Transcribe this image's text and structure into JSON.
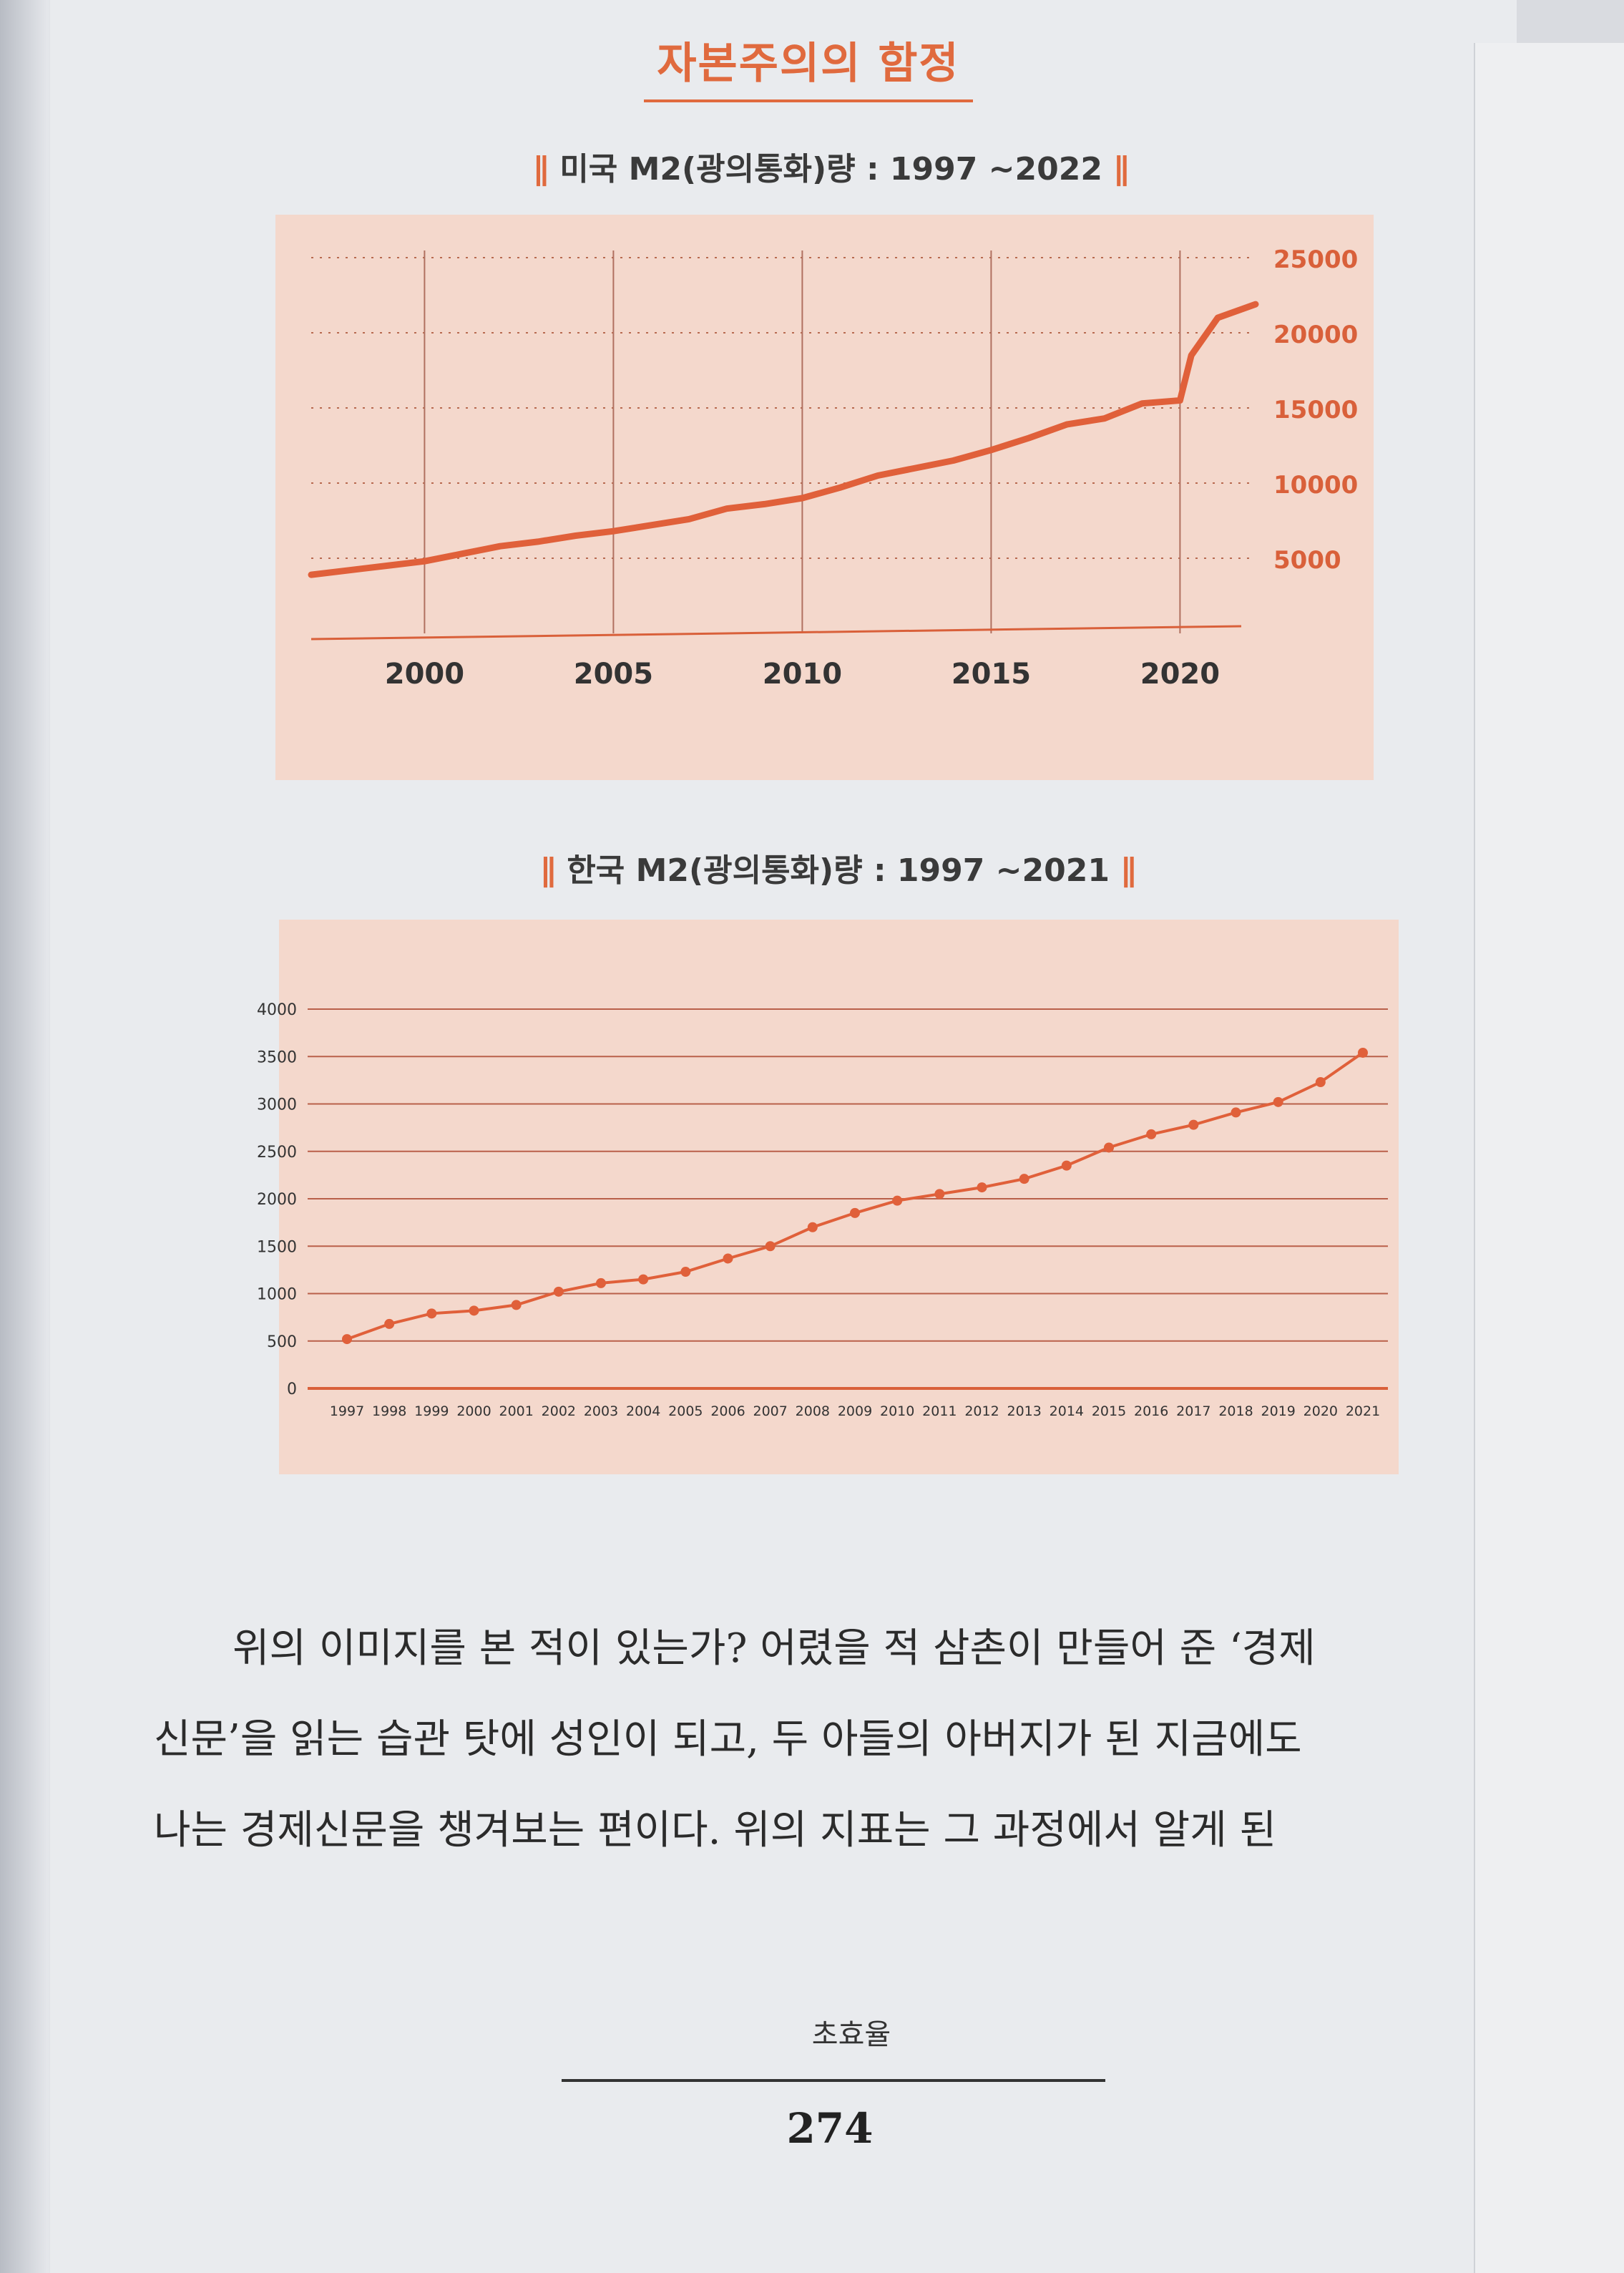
{
  "running_title": "자본주의의 함정",
  "charts": [
    {
      "title_bars_left": "∥",
      "title_text": "미국 M2(광의통화)량 : 1997 ~2022",
      "title_bars_right": "∥"
    },
    {
      "title_bars_left": "∥",
      "title_text": "한국 M2(광의통화)량 : 1997 ~2021",
      "title_bars_right": "∥"
    }
  ],
  "chart_data": [
    {
      "type": "line",
      "title": "미국 M2(광의통화)량 : 1997 ~2022",
      "xlabel": "",
      "ylabel": "",
      "x_ticks": [
        "2000",
        "2005",
        "2010",
        "2015",
        "2020"
      ],
      "y_ticks": [
        "5000",
        "10000",
        "15000",
        "20000",
        "25000"
      ],
      "xlim": [
        1997,
        2022
      ],
      "ylim": [
        0,
        25000
      ],
      "grid": true,
      "y_axis_side": "right",
      "line_color": "#e0603a",
      "x": [
        1997,
        1998,
        1999,
        2000,
        2001,
        2002,
        2003,
        2004,
        2005,
        2006,
        2007,
        2008,
        2009,
        2010,
        2011,
        2012,
        2013,
        2014,
        2015,
        2016,
        2017,
        2018,
        2019,
        2020,
        2020.3,
        2021,
        2022
      ],
      "values": [
        3900,
        4200,
        4500,
        4800,
        5300,
        5800,
        6100,
        6500,
        6800,
        7200,
        7600,
        8300,
        8600,
        9000,
        9700,
        10500,
        11000,
        11500,
        12200,
        13000,
        13900,
        14300,
        15300,
        15500,
        18500,
        21000,
        21900
      ]
    },
    {
      "type": "line",
      "title": "한국 M2(광의통화)량 : 1997 ~2021",
      "xlabel": "",
      "ylabel": "",
      "categories": [
        "1997",
        "1998",
        "1999",
        "2000",
        "2001",
        "2002",
        "2003",
        "2004",
        "2005",
        "2006",
        "2007",
        "2008",
        "2009",
        "2010",
        "2011",
        "2012",
        "2013",
        "2014",
        "2015",
        "2016",
        "2017",
        "2018",
        "2019",
        "2020",
        "2021"
      ],
      "y_ticks": [
        "0",
        "500",
        "1000",
        "1500",
        "2000",
        "2500",
        "3000",
        "3500",
        "4000"
      ],
      "ylim": [
        0,
        4000
      ],
      "grid": true,
      "markers": true,
      "line_color": "#e0603a",
      "values": [
        520,
        680,
        790,
        820,
        880,
        1020,
        1110,
        1150,
        1230,
        1370,
        1500,
        1700,
        1850,
        1980,
        2050,
        2120,
        2210,
        2350,
        2540,
        2680,
        2780,
        2910,
        3020,
        3230,
        3540
      ]
    }
  ],
  "body_paragraph": [
    "위의 이미지를 본 적이 있는가? 어렸을 적 삼촌이 만들어 준 ‘경제",
    "신문’을 읽는 습관 탓에 성인이 되고, 두 아들의 아버지가 된 지금에도",
    "나는 경제신문을 챙겨보는 편이다. 위의 지표는 그 과정에서 알게 된"
  ],
  "footer": {
    "author": "초효율",
    "page_number": "274"
  }
}
